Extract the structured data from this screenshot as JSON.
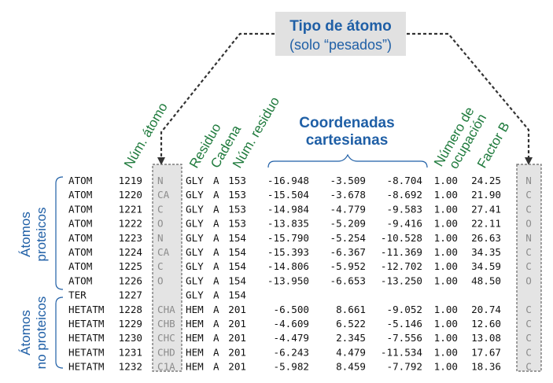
{
  "title": {
    "line1": "Tipo de átomo",
    "line2": "(solo “pesados”)"
  },
  "column_labels": {
    "atom_num": "Núm. átomo",
    "residue": "Residuo",
    "chain": "Cadena",
    "residue_num": "Núm. residuo",
    "coords_line1": "Coordenadas",
    "coords_line2": "cartesianas",
    "occupancy_line1": "Número de",
    "occupancy_line2": "ocupación",
    "bfactor": "Factor B"
  },
  "groups": {
    "protein_line1": "Átomos",
    "protein_line2": "proteicos",
    "nonprotein_line1": "Átomos",
    "nonprotein_line2": "no proteicos"
  },
  "rows": [
    {
      "record": "ATOM",
      "serial": "1219",
      "name": "N",
      "resname": "GLY",
      "chain": "A",
      "resseq": "153",
      "x": "-16.948",
      "y": "-3.509",
      "z": "-8.704",
      "occ": "1.00",
      "bfac": "24.25",
      "elem": "N"
    },
    {
      "record": "ATOM",
      "serial": "1220",
      "name": "CA",
      "resname": "GLY",
      "chain": "A",
      "resseq": "153",
      "x": "-15.504",
      "y": "-3.678",
      "z": "-8.692",
      "occ": "1.00",
      "bfac": "21.90",
      "elem": "C"
    },
    {
      "record": "ATOM",
      "serial": "1221",
      "name": "C",
      "resname": "GLY",
      "chain": "A",
      "resseq": "153",
      "x": "-14.984",
      "y": "-4.779",
      "z": "-9.583",
      "occ": "1.00",
      "bfac": "27.41",
      "elem": "C"
    },
    {
      "record": "ATOM",
      "serial": "1222",
      "name": "O",
      "resname": "GLY",
      "chain": "A",
      "resseq": "153",
      "x": "-13.835",
      "y": "-5.209",
      "z": "-9.416",
      "occ": "1.00",
      "bfac": "22.11",
      "elem": "O"
    },
    {
      "record": "ATOM",
      "serial": "1223",
      "name": "N",
      "resname": "GLY",
      "chain": "A",
      "resseq": "154",
      "x": "-15.790",
      "y": "-5.254",
      "z": "-10.528",
      "occ": "1.00",
      "bfac": "26.63",
      "elem": "N"
    },
    {
      "record": "ATOM",
      "serial": "1224",
      "name": "CA",
      "resname": "GLY",
      "chain": "A",
      "resseq": "154",
      "x": "-15.393",
      "y": "-6.367",
      "z": "-11.369",
      "occ": "1.00",
      "bfac": "34.35",
      "elem": "C"
    },
    {
      "record": "ATOM",
      "serial": "1225",
      "name": "C",
      "resname": "GLY",
      "chain": "A",
      "resseq": "154",
      "x": "-14.806",
      "y": "-5.952",
      "z": "-12.702",
      "occ": "1.00",
      "bfac": "34.59",
      "elem": "C"
    },
    {
      "record": "ATOM",
      "serial": "1226",
      "name": "O",
      "resname": "GLY",
      "chain": "A",
      "resseq": "154",
      "x": "-13.950",
      "y": "-6.653",
      "z": "-13.250",
      "occ": "1.00",
      "bfac": "48.50",
      "elem": "O"
    },
    {
      "record": "TER",
      "serial": "1227",
      "name": "",
      "resname": "GLY",
      "chain": "A",
      "resseq": "154",
      "x": "",
      "y": "",
      "z": "",
      "occ": "",
      "bfac": "",
      "elem": ""
    },
    {
      "record": "HETATM",
      "serial": "1228",
      "name": "CHA",
      "resname": "HEM",
      "chain": "A",
      "resseq": "201",
      "x": "-6.500",
      "y": "8.661",
      "z": "-9.052",
      "occ": "1.00",
      "bfac": "20.74",
      "elem": "C"
    },
    {
      "record": "HETATM",
      "serial": "1229",
      "name": "CHB",
      "resname": "HEM",
      "chain": "A",
      "resseq": "201",
      "x": "-4.609",
      "y": "6.522",
      "z": "-5.146",
      "occ": "1.00",
      "bfac": "12.60",
      "elem": "C"
    },
    {
      "record": "HETATM",
      "serial": "1230",
      "name": "CHC",
      "resname": "HEM",
      "chain": "A",
      "resseq": "201",
      "x": "-4.479",
      "y": "2.345",
      "z": "-7.556",
      "occ": "1.00",
      "bfac": "13.08",
      "elem": "C"
    },
    {
      "record": "HETATM",
      "serial": "1231",
      "name": "CHD",
      "resname": "HEM",
      "chain": "A",
      "resseq": "201",
      "x": "-6.243",
      "y": "4.479",
      "z": "-11.534",
      "occ": "1.00",
      "bfac": "17.67",
      "elem": "C"
    },
    {
      "record": "HETATM",
      "serial": "1232",
      "name": "C1A",
      "resname": "HEM",
      "chain": "A",
      "resseq": "201",
      "x": "-5.982",
      "y": "8.459",
      "z": "-7.792",
      "occ": "1.00",
      "bfac": "18.36",
      "elem": "C"
    }
  ]
}
